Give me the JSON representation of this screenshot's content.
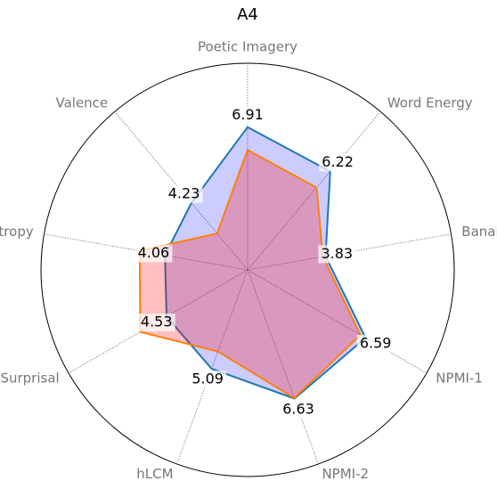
{
  "chart_data": {
    "type": "radar",
    "title": "A4",
    "categories": [
      "Poetic Imagery",
      "Word Energy",
      "Banality",
      "NPMI-1",
      "NPMI-2",
      "hLCM",
      "Surprisal",
      "Entropy",
      "Valence"
    ],
    "series": [
      {
        "color": "#1f77b4",
        "fill": "rgba(0,0,255,0.2)",
        "values": [
          6.91,
          6.22,
          3.83,
          6.59,
          6.63,
          5.09,
          4.53,
          4.06,
          4.23
        ],
        "show_labels": true
      },
      {
        "color": "#ff7f0e",
        "fill": "rgba(255,0,0,0.25)",
        "values": [
          5.8,
          5.2,
          3.7,
          6.3,
          6.6,
          4.2,
          6.0,
          5.3,
          2.3
        ],
        "show_labels": false
      }
    ],
    "rlim": [
      0,
      10
    ],
    "grid": true
  }
}
